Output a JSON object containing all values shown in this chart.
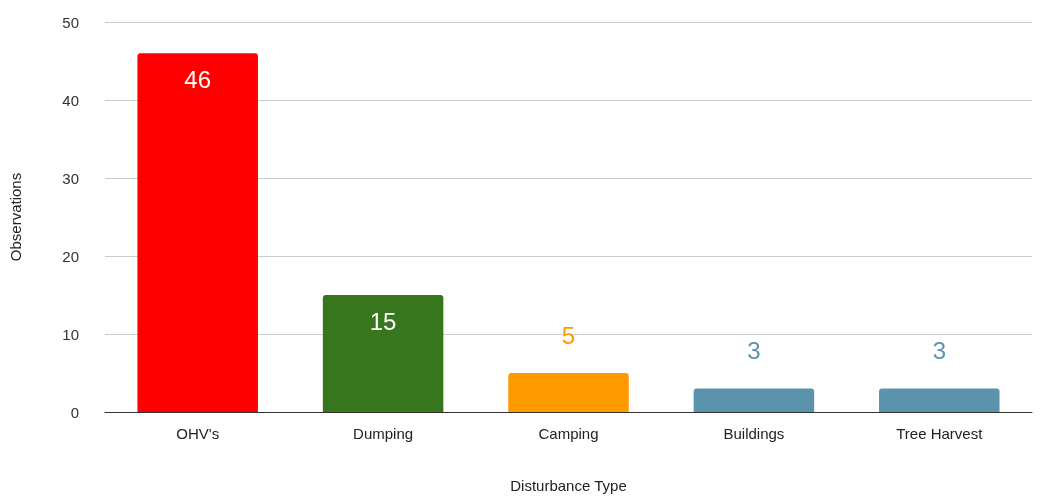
{
  "chart_data": {
    "type": "bar",
    "xlabel": "Disturbance Type",
    "ylabel": "Observations",
    "categories": [
      "OHV's",
      "Dumping",
      "Camping",
      "Buildings",
      "Tree Harvest"
    ],
    "values": [
      46,
      15,
      5,
      3,
      3
    ],
    "colors": [
      "#ff0000",
      "#38761d",
      "#ff9900",
      "#5b93ad",
      "#5b93ad"
    ],
    "ylim": [
      0,
      50
    ],
    "yticks": [
      0,
      10,
      20,
      30,
      40,
      50
    ],
    "grid": "y",
    "data_labels": true
  }
}
